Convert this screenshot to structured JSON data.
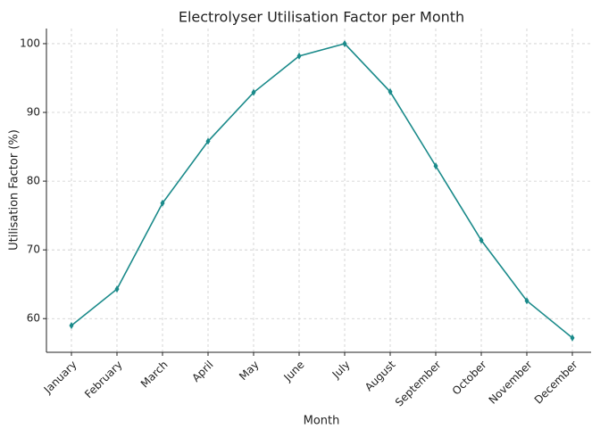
{
  "chart_data": {
    "type": "line",
    "title": "Electrolyser Utilisation Factor per Month",
    "x_label": "Month",
    "y_label": "Utilisation Factor (%)",
    "categories": [
      "January",
      "February",
      "March",
      "April",
      "May",
      "June",
      "July",
      "August",
      "September",
      "October",
      "November",
      "December"
    ],
    "series": [
      {
        "name": "Utilisation Factor",
        "color": "#1a8a8a",
        "values": [
          59.0,
          64.3,
          76.8,
          85.8,
          92.9,
          98.2,
          100.0,
          93.0,
          82.2,
          71.4,
          62.6,
          57.2
        ]
      }
    ],
    "ylim": [
      55.1,
      102.2
    ],
    "yticks": [
      60,
      70,
      80,
      90,
      100
    ],
    "grid": true,
    "marker": "diamond"
  }
}
